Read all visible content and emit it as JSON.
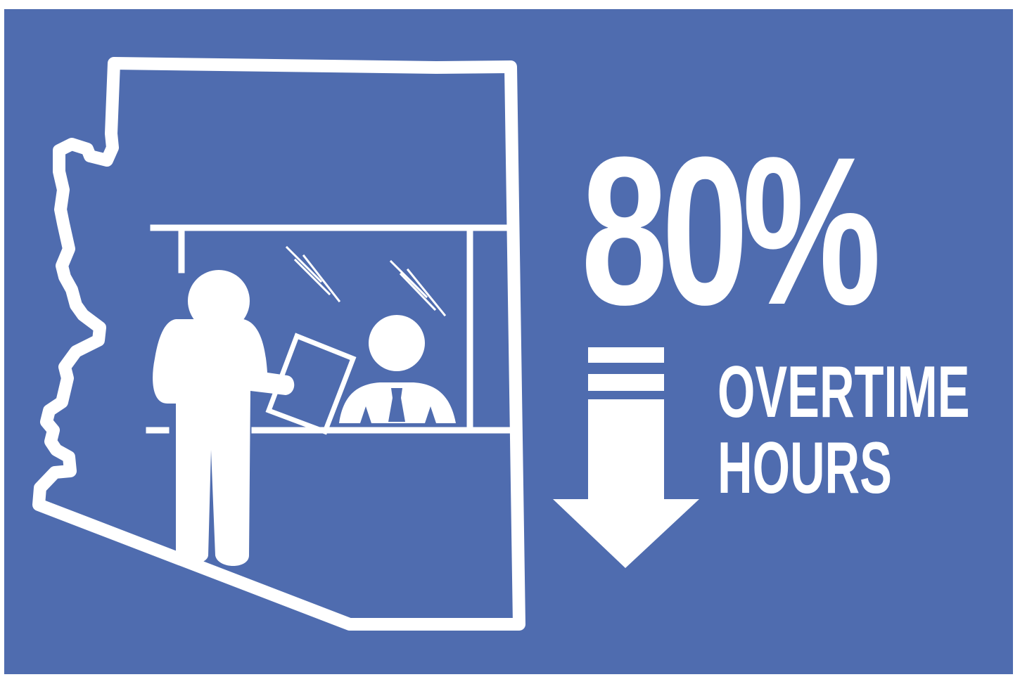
{
  "stat": {
    "value": "80%",
    "label_line1": "OVERTIME",
    "label_line2": "HOURS"
  },
  "colors": {
    "background": "#4f6caf",
    "foreground": "#ffffff"
  },
  "icons": [
    "arizona-state-outline-icon",
    "service-counter-icon",
    "customer-with-document-icon",
    "clerk-icon",
    "decrease-arrow-icon"
  ]
}
